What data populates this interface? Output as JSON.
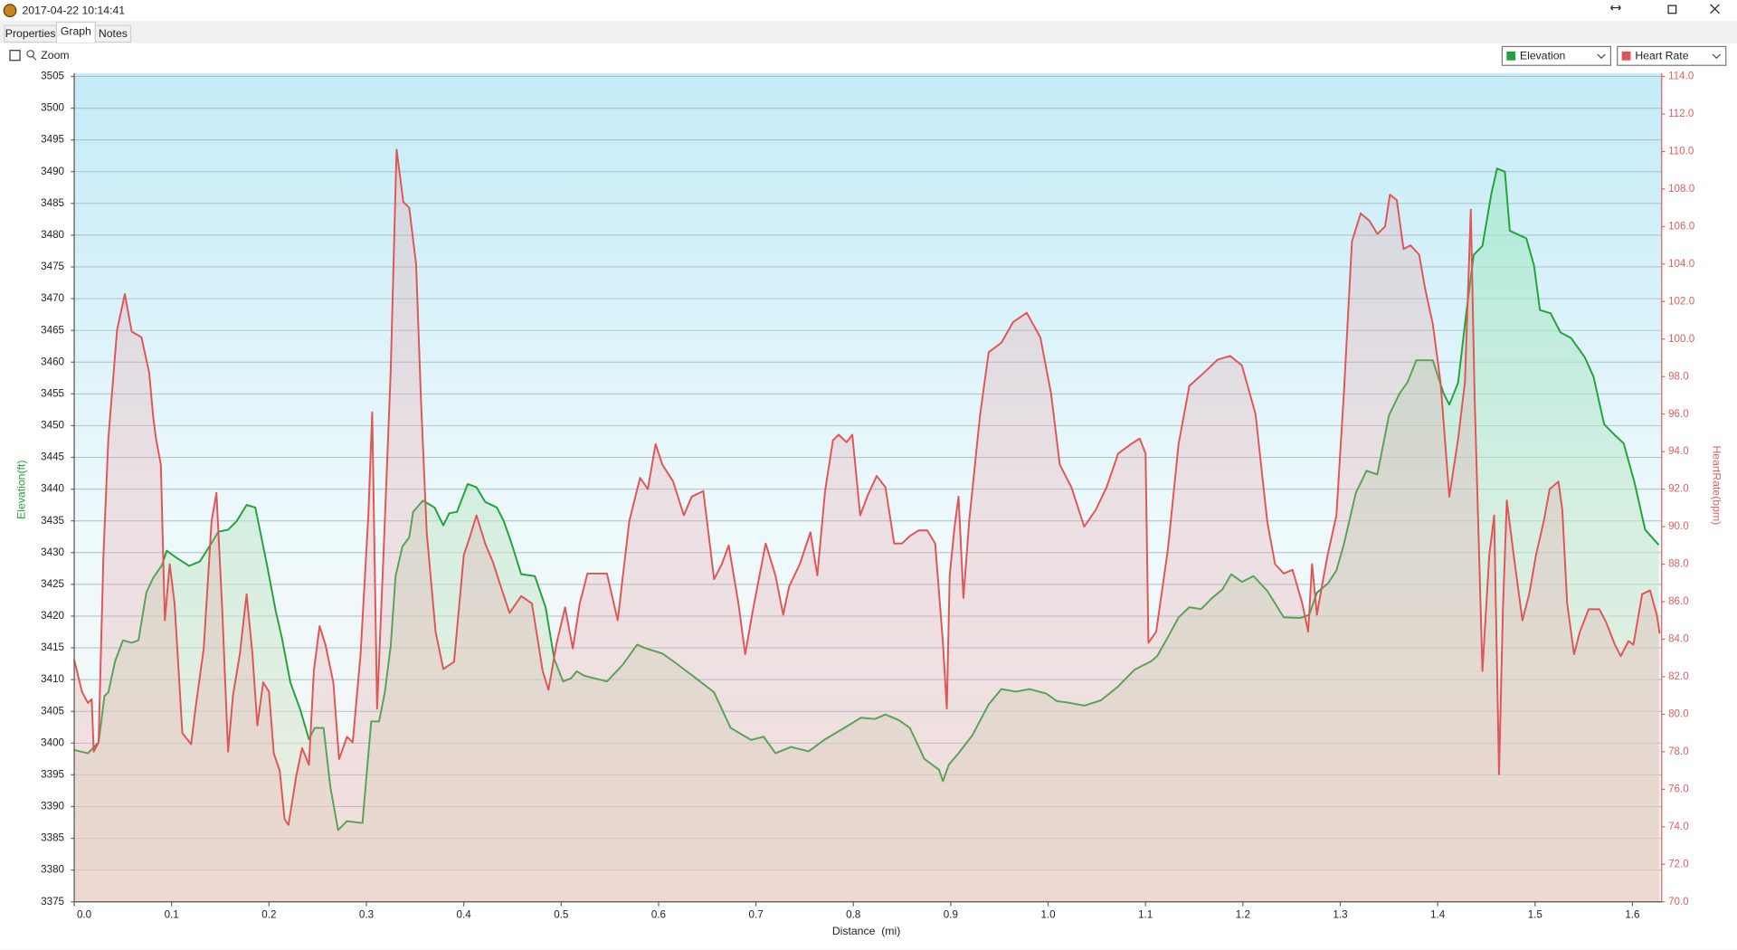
{
  "window": {
    "title": "2017-04-22 10:14:41"
  },
  "tabs": [
    "Properties",
    "Graph",
    "Notes"
  ],
  "toolbar": {
    "zoom": "Zoom"
  },
  "chart_data": {
    "type": "line",
    "xlabel": "Distance  (mi)",
    "ylabel": "Elevation(ft)",
    "y2label": "HeartRate(bpm)",
    "xlim": [
      0,
      1.63
    ],
    "xticks": [
      {
        "value": 0,
        "label": "0.0"
      },
      0.1,
      0.2,
      0.3,
      0.4,
      0.5,
      0.6,
      0.7,
      0.8,
      0.9,
      {
        "value": 1,
        "label": "1.0"
      },
      1.1,
      1.2,
      1.3,
      1.4,
      1.5,
      1.6
    ],
    "ylim": [
      3375,
      3505
    ],
    "yticks": [
      3375,
      3380,
      3385,
      3390,
      3395,
      3400,
      3405,
      3410,
      3415,
      3420,
      3425,
      3430,
      3435,
      3440,
      3445,
      3450,
      3455,
      3460,
      3465,
      3470,
      3475,
      3480,
      3485,
      3490,
      3495,
      3500,
      3505
    ],
    "y2lim": [
      70,
      114
    ],
    "y2ticks": [
      {
        "value": 70,
        "label": "70.0"
      },
      {
        "value": 72,
        "label": "72.0"
      },
      {
        "value": 74,
        "label": "74.0"
      },
      {
        "value": 76,
        "label": "76.0"
      },
      {
        "value": 78,
        "label": "78.0"
      },
      {
        "value": 80,
        "label": "80.0"
      },
      {
        "value": 82,
        "label": "82.0"
      },
      {
        "value": 84,
        "label": "84.0"
      },
      {
        "value": 86,
        "label": "86.0"
      },
      {
        "value": 88,
        "label": "88.0"
      },
      {
        "value": 90,
        "label": "90.0"
      },
      {
        "value": 92,
        "label": "92.0"
      },
      {
        "value": 94,
        "label": "94.0"
      },
      {
        "value": 96,
        "label": "96.0"
      },
      {
        "value": 98,
        "label": "98.0"
      },
      {
        "value": 100,
        "label": "100.0"
      },
      {
        "value": 102,
        "label": "102.0"
      },
      {
        "value": 104,
        "label": "104.0"
      },
      {
        "value": 106,
        "label": "106.0"
      },
      {
        "value": 108,
        "label": "108.0"
      },
      {
        "value": 110,
        "label": "110.0"
      },
      {
        "value": 112,
        "label": "112.0"
      },
      {
        "value": 114,
        "label": "114.0"
      }
    ],
    "grid": true,
    "series": [
      {
        "name": "Elevation",
        "color": "#22a33a",
        "axis": "y",
        "x": [
          0,
          0.014,
          0.025,
          0.031,
          0.035,
          0.042,
          0.05,
          0.059,
          0.066,
          0.074,
          0.081,
          0.09,
          0.095,
          0.104,
          0.118,
          0.129,
          0.141,
          0.148,
          0.158,
          0.167,
          0.177,
          0.186,
          0.198,
          0.207,
          0.213,
          0.222,
          0.232,
          0.241,
          0.247,
          0.256,
          0.263,
          0.271,
          0.28,
          0.296,
          0.305,
          0.313,
          0.319,
          0.325,
          0.33,
          0.337,
          0.344,
          0.348,
          0.358,
          0.37,
          0.379,
          0.385,
          0.393,
          0.404,
          0.413,
          0.422,
          0.434,
          0.441,
          0.449,
          0.459,
          0.473,
          0.484,
          0.493,
          0.502,
          0.51,
          0.516,
          0.524,
          0.547,
          0.563,
          0.578,
          0.587,
          0.604,
          0.617,
          0.635,
          0.657,
          0.674,
          0.695,
          0.708,
          0.72,
          0.736,
          0.754,
          0.771,
          0.793,
          0.808,
          0.822,
          0.833,
          0.847,
          0.858,
          0.873,
          0.888,
          0.892,
          0.898,
          0.908,
          0.922,
          0.939,
          0.952,
          0.967,
          0.981,
          0.998,
          1.009,
          1.02,
          1.037,
          1.054,
          1.071,
          1.089,
          1.106,
          1.112,
          1.123,
          1.134,
          1.145,
          1.157,
          1.168,
          1.179,
          1.188,
          1.199,
          1.211,
          1.225,
          1.242,
          1.259,
          1.268,
          1.276,
          1.287,
          1.296,
          1.304,
          1.316,
          1.327,
          1.338,
          1.35,
          1.361,
          1.369,
          1.378,
          1.395,
          1.406,
          1.412,
          1.421,
          1.429,
          1.437,
          1.446,
          1.455,
          1.461,
          1.469,
          1.474,
          1.491,
          1.499,
          1.505,
          1.516,
          1.526,
          1.537,
          1.551,
          1.56,
          1.571,
          1.582,
          1.591,
          1.602,
          1.613,
          1.627
        ],
        "values": [
          3398.9,
          3398.4,
          3400.1,
          3407.4,
          3408,
          3412.9,
          3416.2,
          3415.8,
          3416.2,
          3423.7,
          3426,
          3428,
          3430.3,
          3429.3,
          3427.9,
          3428.6,
          3431.5,
          3433.3,
          3433.6,
          3435,
          3437.5,
          3437.1,
          3428,
          3420.7,
          3416.7,
          3409.5,
          3405.3,
          3400.6,
          3402.4,
          3402.4,
          3393.1,
          3386.3,
          3387.7,
          3387.4,
          3403.4,
          3403.4,
          3408,
          3415.3,
          3426.3,
          3431,
          3432.4,
          3436.4,
          3438.2,
          3437.1,
          3434.3,
          3436.2,
          3436.4,
          3440.8,
          3440.3,
          3438,
          3437.1,
          3435,
          3431.5,
          3426.6,
          3426.3,
          3421.4,
          3413.2,
          3409.7,
          3410.2,
          3411.3,
          3410.6,
          3409.7,
          3412.3,
          3415.5,
          3414.9,
          3414.1,
          3412.7,
          3410.6,
          3408,
          3402.4,
          3400.5,
          3401,
          3398.4,
          3399.4,
          3398.7,
          3400.6,
          3402.6,
          3404,
          3403.8,
          3404.5,
          3403.6,
          3402.4,
          3397.5,
          3395.8,
          3394,
          3396.6,
          3398.4,
          3401.2,
          3406.1,
          3408.5,
          3408.1,
          3408.5,
          3407.8,
          3406.6,
          3406.4,
          3405.9,
          3406.7,
          3408.8,
          3411.6,
          3412.9,
          3413.7,
          3416.7,
          3419.8,
          3421.4,
          3421.1,
          3422.8,
          3424.2,
          3426.6,
          3425.4,
          3426.3,
          3424,
          3419.8,
          3419.7,
          3420.2,
          3423.7,
          3425.1,
          3427.2,
          3431.5,
          3439.4,
          3442.9,
          3442.3,
          3451.6,
          3455.1,
          3456.8,
          3460.3,
          3460.3,
          3455.1,
          3453.3,
          3456.8,
          3467.3,
          3476.9,
          3478.3,
          3486.5,
          3490.5,
          3490,
          3480.7,
          3479.5,
          3475.2,
          3468.2,
          3467.7,
          3464.7,
          3463.8,
          3460.8,
          3457.7,
          3450.2,
          3448.5,
          3447.2,
          3441.1,
          3433.6,
          3431.2
        ]
      },
      {
        "name": "Heart Rate",
        "color": "#e05555",
        "axis": "y2",
        "x": [
          0,
          0.008,
          0.014,
          0.018,
          0.02,
          0.025,
          0.03,
          0.035,
          0.044,
          0.052,
          0.059,
          0.069,
          0.077,
          0.081,
          0.084,
          0.089,
          0.093,
          0.098,
          0.103,
          0.111,
          0.12,
          0.125,
          0.133,
          0.141,
          0.146,
          0.152,
          0.158,
          0.163,
          0.17,
          0.177,
          0.183,
          0.188,
          0.194,
          0.2,
          0.205,
          0.211,
          0.216,
          0.22,
          0.228,
          0.234,
          0.241,
          0.246,
          0.252,
          0.258,
          0.266,
          0.272,
          0.28,
          0.286,
          0.294,
          0.302,
          0.306,
          0.311,
          0.318,
          0.325,
          0.331,
          0.338,
          0.344,
          0.351,
          0.356,
          0.362,
          0.371,
          0.379,
          0.39,
          0.4,
          0.406,
          0.413,
          0.422,
          0.43,
          0.438,
          0.447,
          0.459,
          0.47,
          0.481,
          0.487,
          0.495,
          0.504,
          0.512,
          0.519,
          0.527,
          0.547,
          0.558,
          0.57,
          0.581,
          0.589,
          0.597,
          0.604,
          0.615,
          0.626,
          0.634,
          0.646,
          0.657,
          0.665,
          0.672,
          0.682,
          0.689,
          0.697,
          0.71,
          0.72,
          0.728,
          0.734,
          0.745,
          0.756,
          0.763,
          0.771,
          0.779,
          0.785,
          0.793,
          0.799,
          0.807,
          0.815,
          0.824,
          0.833,
          0.842,
          0.85,
          0.858,
          0.867,
          0.876,
          0.884,
          0.892,
          0.896,
          0.899,
          0.904,
          0.908,
          0.913,
          0.919,
          0.93,
          0.939,
          0.952,
          0.964,
          0.978,
          0.992,
          1.003,
          1.012,
          1.024,
          1.037,
          1.049,
          1.06,
          1.072,
          1.085,
          1.094,
          1.1,
          1.103,
          1.111,
          1.123,
          1.134,
          1.145,
          1.162,
          1.174,
          1.187,
          1.199,
          1.213,
          1.225,
          1.233,
          1.242,
          1.251,
          1.261,
          1.267,
          1.271,
          1.276,
          1.281,
          1.287,
          1.296,
          1.304,
          1.312,
          1.321,
          1.33,
          1.338,
          1.346,
          1.351,
          1.358,
          1.365,
          1.372,
          1.381,
          1.387,
          1.395,
          1.403,
          1.412,
          1.421,
          1.428,
          1.434,
          1.438,
          1.446,
          1.453,
          1.458,
          1.463,
          1.467,
          1.471,
          1.478,
          1.487,
          1.494,
          1.501,
          1.509,
          1.515,
          1.524,
          1.528,
          1.533,
          1.54,
          1.546,
          1.555,
          1.566,
          1.573,
          1.582,
          1.588,
          1.596,
          1.601,
          1.61,
          1.618,
          1.625,
          1.628
        ],
        "values": [
          82.9,
          81.2,
          80.6,
          80.8,
          78,
          78.5,
          88.5,
          94.7,
          100.5,
          102.4,
          100.4,
          100.1,
          98.2,
          95.9,
          94.7,
          93.3,
          85,
          88,
          85.9,
          79,
          78.4,
          80.5,
          83.5,
          90.3,
          91.8,
          85.6,
          78,
          81,
          83.2,
          86.4,
          83.2,
          79.4,
          81.7,
          81.2,
          77.9,
          77,
          74.4,
          74.1,
          76.7,
          78.2,
          77.3,
          82.3,
          84.7,
          83.7,
          81.7,
          77.6,
          78.8,
          78.5,
          83.2,
          90.6,
          96.1,
          80.3,
          89.1,
          98.3,
          110.1,
          107.3,
          107,
          104,
          96.8,
          89.7,
          84.4,
          82.4,
          82.8,
          88.5,
          89.4,
          90.6,
          89.1,
          88.1,
          86.8,
          85.4,
          86.3,
          85.9,
          82.3,
          81.3,
          83.7,
          85.7,
          83.5,
          85.9,
          87.5,
          87.5,
          85,
          90.3,
          92.6,
          92,
          94.4,
          93.3,
          92.4,
          90.6,
          91.6,
          91.9,
          87.2,
          88,
          89,
          85.9,
          83.2,
          85.6,
          89.1,
          87.4,
          85.3,
          86.8,
          88,
          89.7,
          87.4,
          91.9,
          94.6,
          94.9,
          94.5,
          94.9,
          90.6,
          91.7,
          92.7,
          92.1,
          89.1,
          89.1,
          89.5,
          89.8,
          89.8,
          89.1,
          83.8,
          80.3,
          87.4,
          90,
          91.6,
          86.2,
          90.3,
          95.9,
          99.3,
          99.8,
          100.9,
          101.4,
          100.1,
          97.1,
          93.3,
          92.1,
          90,
          90.9,
          92.1,
          93.9,
          94.4,
          94.7,
          93.9,
          83.8,
          84.4,
          88.8,
          94.4,
          97.5,
          98.3,
          98.9,
          99.1,
          98.6,
          96,
          90.3,
          88,
          87.5,
          87.7,
          85.9,
          84.4,
          88,
          85.3,
          86.8,
          88.5,
          90.6,
          97.4,
          105.2,
          106.7,
          106.3,
          105.6,
          106,
          107.7,
          107.4,
          104.8,
          105,
          104.5,
          102.7,
          100.8,
          97.7,
          91.6,
          94.7,
          97.7,
          106.9,
          96.8,
          82.3,
          88.5,
          90.6,
          76.8,
          85.6,
          91.4,
          88.5,
          85,
          86.4,
          88.5,
          90.3,
          92,
          92.4,
          90.9,
          85.9,
          83.2,
          84.4,
          85.6,
          85.6,
          84.9,
          83.7,
          83.1,
          83.9,
          83.7,
          86.4,
          86.6,
          85.3,
          84.3
        ]
      }
    ]
  }
}
